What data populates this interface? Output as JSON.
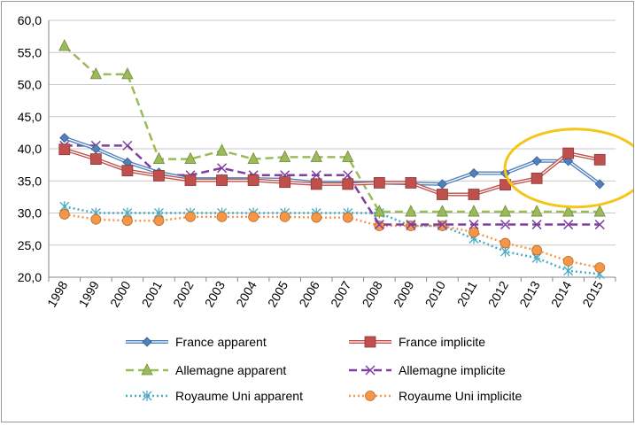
{
  "chart_data": {
    "type": "line",
    "title": "",
    "xlabel": "",
    "ylabel": "",
    "ylim": [
      20,
      60
    ],
    "ytick_labels": [
      "20,0",
      "25,0",
      "30,0",
      "35,0",
      "40,0",
      "45,0",
      "50,0",
      "55,0",
      "60,0"
    ],
    "categories": [
      "1998",
      "1999",
      "2000",
      "2001",
      "2002",
      "2003",
      "2004",
      "2005",
      "2006",
      "2007",
      "2008",
      "2009",
      "2010",
      "2011",
      "2012",
      "2013",
      "2014",
      "2015"
    ],
    "grid": "horizontal",
    "legend_position": "bottom",
    "series": [
      {
        "name": "France  apparent",
        "color": "#4f81bd",
        "style": "solid-double",
        "marker": "diamond",
        "values": [
          41.7,
          40.0,
          37.9,
          36.3,
          35.3,
          35.3,
          35.3,
          35.2,
          34.7,
          34.7,
          34.7,
          34.6,
          34.5,
          36.2,
          36.2,
          38.1,
          38.1,
          34.5
        ]
      },
      {
        "name": "France  implicite",
        "color": "#c0504d",
        "style": "solid-double",
        "marker": "square",
        "values": [
          39.9,
          38.4,
          36.6,
          35.8,
          35.1,
          35.1,
          35.1,
          34.8,
          34.5,
          34.5,
          34.7,
          34.7,
          32.9,
          32.9,
          34.4,
          35.4,
          39.3,
          38.3
        ]
      },
      {
        "name": "Allemagne  apparent",
        "color": "#9bbb59",
        "style": "dashed",
        "marker": "triangle",
        "values": [
          56.0,
          51.6,
          51.6,
          38.4,
          38.4,
          39.7,
          38.4,
          38.7,
          38.7,
          38.7,
          30.2,
          30.2,
          30.2,
          30.2,
          30.2,
          30.2,
          30.2,
          30.2
        ]
      },
      {
        "name": "Allemagne implicite",
        "color": "#7f3fa0",
        "style": "dashed",
        "marker": "x",
        "values": [
          40.5,
          40.5,
          40.5,
          35.9,
          35.9,
          37.0,
          35.9,
          35.9,
          35.9,
          35.9,
          28.2,
          28.2,
          28.2,
          28.2,
          28.2,
          28.2,
          28.2,
          28.2
        ]
      },
      {
        "name": "Royaume Uni apparent",
        "color": "#4bacc6",
        "style": "dotted",
        "marker": "asterisk",
        "values": [
          31.0,
          30.0,
          30.0,
          30.0,
          30.0,
          30.0,
          30.0,
          30.0,
          30.0,
          30.0,
          30.0,
          28.0,
          28.0,
          26.0,
          24.0,
          23.0,
          21.0,
          20.5
        ]
      },
      {
        "name": "Royaume Uni implicite",
        "color": "#f79646",
        "style": "dotted",
        "marker": "circle",
        "values": [
          29.8,
          29.0,
          28.8,
          28.8,
          29.4,
          29.4,
          29.4,
          29.4,
          29.3,
          29.3,
          28.0,
          28.0,
          28.0,
          27.0,
          25.3,
          24.2,
          22.5,
          21.5
        ]
      }
    ],
    "annotation": {
      "type": "ellipse-highlight",
      "color": "#f5c518",
      "around_categories": [
        "2013",
        "2015"
      ]
    }
  }
}
